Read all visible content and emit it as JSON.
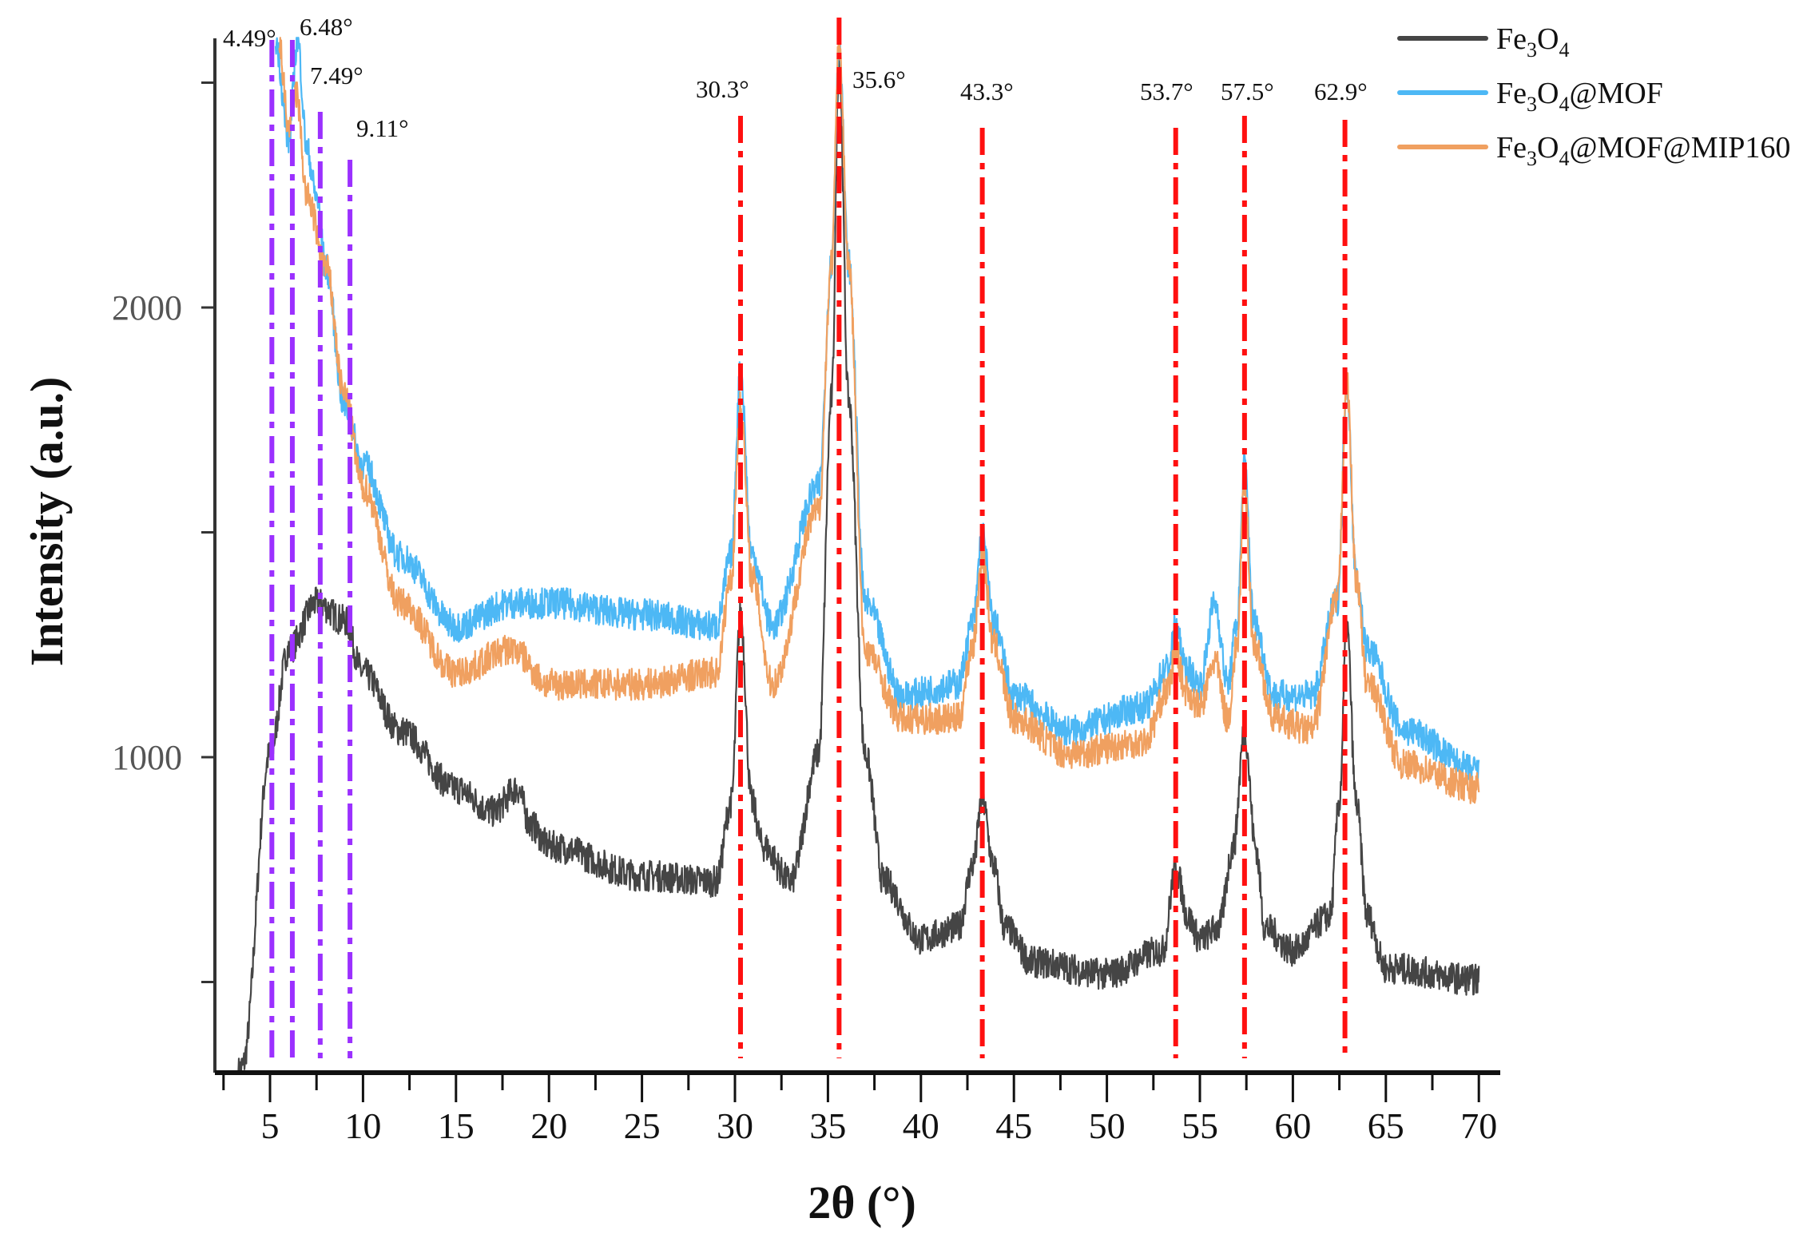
{
  "chart_data": {
    "type": "line",
    "title": "",
    "xlabel": "2θ (°)",
    "ylabel": "Intensity (a.u.)",
    "xlim": [
      2.5,
      71
    ],
    "ylim": [
      300,
      2600
    ],
    "x_ticks": [
      5,
      10,
      15,
      20,
      25,
      30,
      35,
      40,
      45,
      50,
      55,
      60,
      65,
      70
    ],
    "x_tick_labels": [
      "5",
      "10",
      "15",
      "20",
      "25",
      "30",
      "35",
      "40",
      "45",
      "50",
      "55",
      "60",
      "65",
      "70"
    ],
    "y_ticks": [
      500,
      1000,
      1500,
      2000,
      2500
    ],
    "y_tick_labels": [
      "1000",
      "2000"
    ],
    "y_labeled_ticks": [
      1000,
      2000
    ],
    "grid": false,
    "legend_position": "top-right",
    "series": [
      {
        "name": "Fe3O4",
        "label_main": "Fe",
        "sub1": "3",
        "mid": "O",
        "sub2": "4",
        "suffix": "",
        "color": "#454545",
        "x": [
          3.3,
          3.5,
          5,
          6,
          7.5,
          9,
          10,
          12,
          15,
          17,
          18.3,
          19,
          20,
          25,
          29,
          29.8,
          30.3,
          30.9,
          31.5,
          33,
          34.5,
          35.2,
          35.6,
          36.1,
          37,
          38,
          40,
          42,
          42.8,
          43.3,
          43.9,
          44.5,
          46,
          50,
          53,
          53.7,
          54.4,
          55,
          56,
          56.8,
          57.4,
          58,
          58.5,
          60,
          62,
          62.5,
          62.9,
          63.4,
          64,
          65,
          70
        ],
        "y": [
          300,
          312,
          1008,
          1240,
          1343,
          1304,
          1188,
          1059,
          930,
          879,
          930,
          850,
          802,
          737,
          724,
          900,
          1317,
          900,
          802,
          724,
          1008,
          1800,
          2554,
          1800,
          1008,
          724,
          595,
          621,
          760,
          905,
          760,
          621,
          544,
          518,
          570,
          750,
          640,
          595,
          621,
          800,
          1059,
          800,
          621,
          570,
          647,
          900,
          1291,
          900,
          647,
          531,
          505
        ]
      },
      {
        "name": "Fe3O4@MOF",
        "label_main": "Fe",
        "sub1": "3",
        "mid": "O",
        "sub2": "4",
        "suffix": "@MOF",
        "color": "#4db8f5",
        "x": [
          5.3,
          6,
          6.48,
          7,
          7.5,
          8,
          9,
          10,
          12,
          15,
          18,
          20,
          25,
          29,
          29.8,
          30.3,
          30.9,
          32,
          34.5,
          35.2,
          35.6,
          36.1,
          37,
          39,
          42,
          42.8,
          43.3,
          43.9,
          45,
          48,
          52,
          53.3,
          53.7,
          54.2,
          55,
          55.8,
          56.5,
          57,
          57.4,
          57.9,
          59,
          61,
          62.4,
          62.9,
          63.4,
          64,
          66,
          70
        ],
        "y": [
          2593,
          2374,
          2593,
          2348,
          2245,
          2090,
          1781,
          1652,
          1446,
          1291,
          1343,
          1343,
          1317,
          1291,
          1450,
          1858,
          1450,
          1291,
          1600,
          2100,
          2593,
          2100,
          1343,
          1137,
          1162,
          1300,
          1497,
          1300,
          1137,
          1059,
          1111,
          1200,
          1291,
          1200,
          1162,
          1343,
          1162,
          1300,
          1652,
          1300,
          1137,
          1137,
          1350,
          1832,
          1400,
          1240,
          1059,
          969
        ]
      },
      {
        "name": "Fe3O4@MOF@MIP160",
        "label_main": "Fe",
        "sub1": "3",
        "mid": "O",
        "sub2": "4",
        "suffix": "@MOF@MIP160",
        "color": "#f0a060",
        "x": [
          5.5,
          6,
          6.4,
          7,
          8,
          9,
          10,
          12,
          15,
          18,
          20,
          25,
          29,
          29.8,
          30.3,
          30.9,
          32,
          34.5,
          35.2,
          35.6,
          36.1,
          37,
          39,
          42,
          42.8,
          43.3,
          43.9,
          45,
          48,
          52,
          53.3,
          53.7,
          54.2,
          55,
          55.8,
          56.5,
          57,
          57.4,
          57.9,
          59,
          61,
          62.4,
          62.9,
          63.4,
          64,
          66,
          70
        ],
        "y": [
          2580,
          2400,
          2477,
          2245,
          2090,
          1807,
          1600,
          1343,
          1188,
          1240,
          1162,
          1162,
          1188,
          1400,
          1781,
          1400,
          1162,
          1549,
          2100,
          2593,
          2100,
          1240,
          1085,
          1085,
          1250,
          1446,
          1250,
          1085,
          1008,
          1034,
          1150,
          1240,
          1150,
          1111,
          1214,
          1085,
          1250,
          1600,
          1250,
          1085,
          1059,
          1350,
          1832,
          1400,
          1162,
          982,
          930
        ]
      }
    ],
    "reference_lines": [
      {
        "x": 5.1,
        "label": "4.49°",
        "color": "#9b30ff"
      },
      {
        "x": 6.2,
        "label": "6.48°",
        "color": "#9b30ff"
      },
      {
        "x": 7.7,
        "label": "7.49°",
        "color": "#9b30ff"
      },
      {
        "x": 9.3,
        "label": "9.11°",
        "color": "#9b30ff"
      },
      {
        "x": 30.3,
        "label": "30.3°",
        "color": "#ff1010"
      },
      {
        "x": 35.6,
        "label": "35.6°",
        "color": "#ff1010"
      },
      {
        "x": 43.3,
        "label": "43.3°",
        "color": "#ff1010"
      },
      {
        "x": 53.7,
        "label": "53.7°",
        "color": "#ff1010"
      },
      {
        "x": 57.4,
        "label": "57.5°",
        "color": "#ff1010"
      },
      {
        "x": 62.8,
        "label": "62.9°",
        "color": "#ff1010"
      }
    ]
  }
}
